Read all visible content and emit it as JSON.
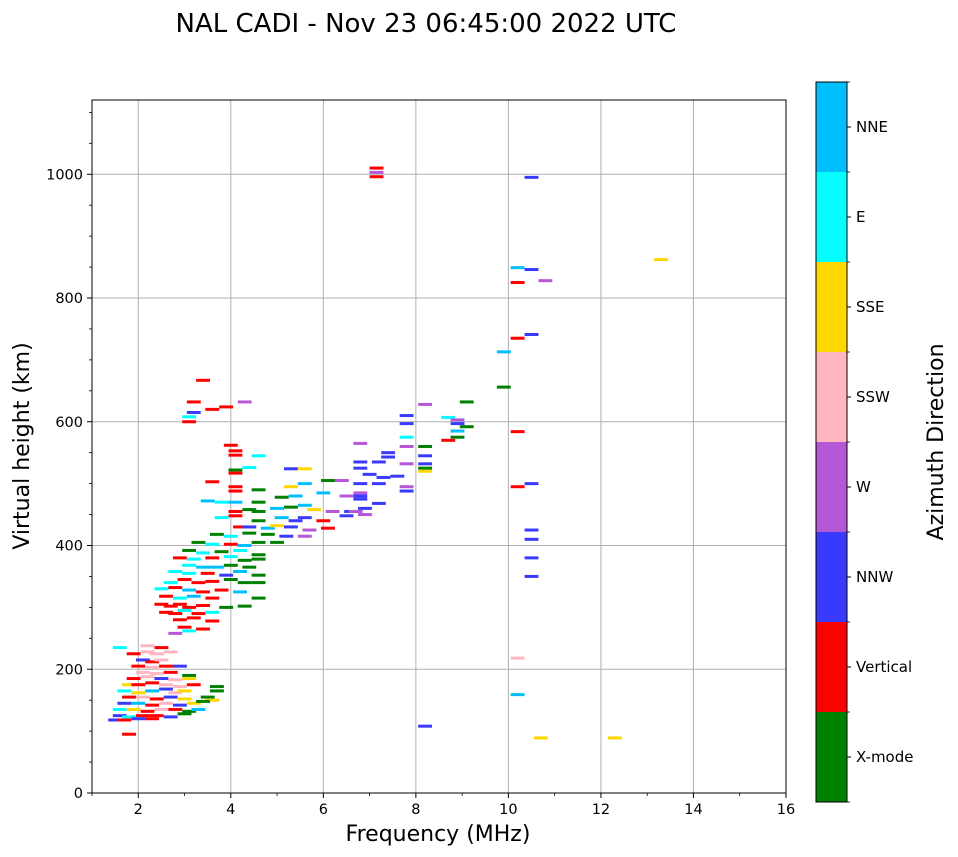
{
  "chart_data": {
    "type": "scatter",
    "title": "NAL CADI - Nov 23 06:45:00 2022 UTC",
    "xlabel": "Frequency (MHz)",
    "ylabel": "Virtual height (km)",
    "xlim": [
      1,
      16
    ],
    "ylim": [
      0,
      1120
    ],
    "xticks": [
      "2",
      "4",
      "6",
      "8",
      "10",
      "12",
      "14",
      "16"
    ],
    "yticks": [
      "0",
      "200",
      "400",
      "600",
      "800",
      "1000"
    ],
    "grid": true,
    "colorbar": {
      "label": "Azimuth Direction",
      "categories": [
        {
          "name": "X-mode",
          "color": "#008000"
        },
        {
          "name": "Vertical",
          "color": "#ff0000"
        },
        {
          "name": "NNW",
          "color": "#3a3aff"
        },
        {
          "name": "W",
          "color": "#b557d6"
        },
        {
          "name": "SSW",
          "color": "#ffb6c1"
        },
        {
          "name": "SSE",
          "color": "#ffd700"
        },
        {
          "name": "E",
          "color": "#00ffff"
        },
        {
          "name": "NNE",
          "color": "#00bfff"
        }
      ]
    },
    "points": [
      [
        7.15,
        1010,
        "Vertical"
      ],
      [
        7.15,
        1003,
        "W"
      ],
      [
        7.15,
        996,
        "Vertical"
      ],
      [
        10.5,
        995,
        "NNW"
      ],
      [
        13.3,
        862,
        "SSE"
      ],
      [
        10.2,
        849,
        "NNE"
      ],
      [
        10.5,
        846,
        "NNW"
      ],
      [
        10.2,
        825,
        "Vertical"
      ],
      [
        10.8,
        828,
        "W"
      ],
      [
        10.5,
        741,
        "NNW"
      ],
      [
        10.2,
        735,
        "Vertical"
      ],
      [
        9.9,
        713,
        "NNE"
      ],
      [
        9.9,
        656,
        "X-mode"
      ],
      [
        3.4,
        667,
        "Vertical"
      ],
      [
        3.2,
        632,
        "Vertical"
      ],
      [
        4.3,
        632,
        "W"
      ],
      [
        3.9,
        624,
        "Vertical"
      ],
      [
        8.2,
        628,
        "W"
      ],
      [
        9.1,
        632,
        "X-mode"
      ],
      [
        3.6,
        620,
        "Vertical"
      ],
      [
        3.2,
        615,
        "NNW"
      ],
      [
        3.1,
        608,
        "E"
      ],
      [
        3.1,
        600,
        "Vertical"
      ],
      [
        7.8,
        610,
        "NNW"
      ],
      [
        8.7,
        607,
        "E"
      ],
      [
        8.9,
        603,
        "W"
      ],
      [
        9.1,
        592,
        "X-mode"
      ],
      [
        8.9,
        597,
        "NNW"
      ],
      [
        7.8,
        597,
        "NNW"
      ],
      [
        10.2,
        584,
        "Vertical"
      ],
      [
        8.9,
        585,
        "NNE"
      ],
      [
        8.9,
        575,
        "X-mode"
      ],
      [
        8.7,
        570,
        "Vertical"
      ],
      [
        7.8,
        575,
        "E"
      ],
      [
        8.2,
        560,
        "X-mode"
      ],
      [
        6.8,
        565,
        "W"
      ],
      [
        7.8,
        560,
        "W"
      ],
      [
        4.0,
        562,
        "Vertical"
      ],
      [
        4.1,
        553,
        "Vertical"
      ],
      [
        4.1,
        546,
        "Vertical"
      ],
      [
        4.6,
        545,
        "E"
      ],
      [
        7.4,
        550,
        "NNW"
      ],
      [
        7.4,
        543,
        "NNW"
      ],
      [
        8.2,
        545,
        "NNW"
      ],
      [
        6.8,
        535,
        "NNW"
      ],
      [
        7.2,
        535,
        "NNW"
      ],
      [
        8.2,
        532,
        "NNW"
      ],
      [
        7.8,
        532,
        "W"
      ],
      [
        6.8,
        525,
        "NNW"
      ],
      [
        5.3,
        524,
        "NNW"
      ],
      [
        5.6,
        524,
        "SSE"
      ],
      [
        4.1,
        522,
        "X-mode"
      ],
      [
        4.1,
        517,
        "Vertical"
      ],
      [
        4.4,
        526,
        "E"
      ],
      [
        7.0,
        515,
        "NNW"
      ],
      [
        7.3,
        510,
        "NNW"
      ],
      [
        7.6,
        512,
        "NNW"
      ],
      [
        8.2,
        520,
        "SSE"
      ],
      [
        8.2,
        525,
        "X-mode"
      ],
      [
        6.1,
        505,
        "X-mode"
      ],
      [
        6.4,
        505,
        "W"
      ],
      [
        6.8,
        500,
        "NNW"
      ],
      [
        7.2,
        500,
        "NNW"
      ],
      [
        7.8,
        495,
        "W"
      ],
      [
        10.2,
        495,
        "Vertical"
      ],
      [
        10.5,
        500,
        "NNW"
      ],
      [
        3.6,
        503,
        "Vertical"
      ],
      [
        4.1,
        495,
        "Vertical"
      ],
      [
        4.1,
        488,
        "Vertical"
      ],
      [
        4.6,
        490,
        "X-mode"
      ],
      [
        5.6,
        500,
        "NNE"
      ],
      [
        5.3,
        495,
        "SSE"
      ],
      [
        6.0,
        485,
        "NNE"
      ],
      [
        6.8,
        485,
        "W"
      ],
      [
        6.8,
        480,
        "NNW"
      ],
      [
        7.8,
        488,
        "NNW"
      ],
      [
        3.5,
        472,
        "NNE"
      ],
      [
        3.8,
        470,
        "E"
      ],
      [
        4.1,
        470,
        "NNE"
      ],
      [
        4.6,
        470,
        "X-mode"
      ],
      [
        5.1,
        478,
        "X-mode"
      ],
      [
        5.4,
        480,
        "NNE"
      ],
      [
        6.5,
        480,
        "W"
      ],
      [
        6.8,
        475,
        "NNW"
      ],
      [
        7.2,
        468,
        "NNW"
      ],
      [
        4.1,
        455,
        "Vertical"
      ],
      [
        4.4,
        458,
        "X-mode"
      ],
      [
        4.6,
        455,
        "X-mode"
      ],
      [
        5.0,
        460,
        "NNE"
      ],
      [
        5.3,
        462,
        "X-mode"
      ],
      [
        5.6,
        465,
        "NNE"
      ],
      [
        5.8,
        458,
        "SSE"
      ],
      [
        6.2,
        455,
        "W"
      ],
      [
        6.6,
        455,
        "NNW"
      ],
      [
        6.9,
        460,
        "NNW"
      ],
      [
        3.8,
        445,
        "E"
      ],
      [
        4.1,
        448,
        "Vertical"
      ],
      [
        4.6,
        440,
        "X-mode"
      ],
      [
        5.1,
        445,
        "NNE"
      ],
      [
        5.4,
        440,
        "NNW"
      ],
      [
        5.6,
        445,
        "NNW"
      ],
      [
        6.0,
        440,
        "Vertical"
      ],
      [
        6.5,
        448,
        "NNW"
      ],
      [
        6.7,
        455,
        "W"
      ],
      [
        6.9,
        450,
        "W"
      ],
      [
        4.2,
        430,
        "Vertical"
      ],
      [
        4.4,
        430,
        "NNW"
      ],
      [
        4.8,
        428,
        "NNE"
      ],
      [
        5.0,
        432,
        "SSE"
      ],
      [
        5.3,
        430,
        "NNW"
      ],
      [
        5.7,
        425,
        "W"
      ],
      [
        6.1,
        428,
        "Vertical"
      ],
      [
        10.5,
        425,
        "NNW"
      ],
      [
        3.7,
        418,
        "X-mode"
      ],
      [
        4.0,
        415,
        "E"
      ],
      [
        4.4,
        420,
        "X-mode"
      ],
      [
        4.8,
        418,
        "X-mode"
      ],
      [
        5.2,
        415,
        "NNW"
      ],
      [
        5.6,
        415,
        "W"
      ],
      [
        10.5,
        410,
        "NNW"
      ],
      [
        3.3,
        405,
        "X-mode"
      ],
      [
        3.6,
        402,
        "E"
      ],
      [
        4.0,
        402,
        "Vertical"
      ],
      [
        4.3,
        400,
        "NNE"
      ],
      [
        4.6,
        405,
        "X-mode"
      ],
      [
        5.0,
        405,
        "X-mode"
      ],
      [
        3.1,
        392,
        "X-mode"
      ],
      [
        3.4,
        388,
        "E"
      ],
      [
        3.8,
        390,
        "X-mode"
      ],
      [
        4.2,
        392,
        "E"
      ],
      [
        4.6,
        385,
        "X-mode"
      ],
      [
        2.9,
        380,
        "Vertical"
      ],
      [
        3.2,
        378,
        "E"
      ],
      [
        3.6,
        380,
        "Vertical"
      ],
      [
        4.0,
        382,
        "E"
      ],
      [
        4.3,
        376,
        "X-mode"
      ],
      [
        4.6,
        378,
        "X-mode"
      ],
      [
        10.5,
        380,
        "NNW"
      ],
      [
        3.1,
        368,
        "E"
      ],
      [
        3.4,
        365,
        "NNE"
      ],
      [
        3.7,
        365,
        "NNE"
      ],
      [
        4.0,
        368,
        "X-mode"
      ],
      [
        4.4,
        365,
        "X-mode"
      ],
      [
        2.8,
        358,
        "E"
      ],
      [
        3.1,
        355,
        "E"
      ],
      [
        3.5,
        355,
        "Vertical"
      ],
      [
        3.9,
        352,
        "NNW"
      ],
      [
        4.2,
        358,
        "NNE"
      ],
      [
        4.6,
        352,
        "X-mode"
      ],
      [
        2.7,
        340,
        "E"
      ],
      [
        3.0,
        345,
        "Vertical"
      ],
      [
        3.3,
        340,
        "Vertical"
      ],
      [
        3.6,
        342,
        "Vertical"
      ],
      [
        4.0,
        345,
        "X-mode"
      ],
      [
        4.3,
        340,
        "X-mode"
      ],
      [
        4.6,
        340,
        "X-mode"
      ],
      [
        10.5,
        350,
        "NNW"
      ],
      [
        2.5,
        330,
        "E"
      ],
      [
        2.8,
        332,
        "Vertical"
      ],
      [
        3.1,
        328,
        "NNE"
      ],
      [
        3.4,
        325,
        "Vertical"
      ],
      [
        3.8,
        328,
        "Vertical"
      ],
      [
        4.2,
        325,
        "NNE"
      ],
      [
        2.6,
        318,
        "Vertical"
      ],
      [
        2.9,
        315,
        "E"
      ],
      [
        3.2,
        318,
        "NNE"
      ],
      [
        3.6,
        315,
        "Vertical"
      ],
      [
        4.6,
        315,
        "X-mode"
      ],
      [
        2.5,
        305,
        "Vertical"
      ],
      [
        2.7,
        302,
        "Vertical"
      ],
      [
        2.9,
        305,
        "Vertical"
      ],
      [
        3.1,
        300,
        "Vertical"
      ],
      [
        3.4,
        303,
        "Vertical"
      ],
      [
        3.9,
        300,
        "X-mode"
      ],
      [
        4.3,
        302,
        "X-mode"
      ],
      [
        2.6,
        292,
        "Vertical"
      ],
      [
        2.8,
        290,
        "Vertical"
      ],
      [
        3.0,
        295,
        "E"
      ],
      [
        3.3,
        290,
        "Vertical"
      ],
      [
        3.6,
        292,
        "E"
      ],
      [
        2.9,
        280,
        "Vertical"
      ],
      [
        3.2,
        283,
        "Vertical"
      ],
      [
        3.6,
        278,
        "Vertical"
      ],
      [
        3.0,
        268,
        "Vertical"
      ],
      [
        3.4,
        265,
        "Vertical"
      ],
      [
        2.8,
        258,
        "W"
      ],
      [
        3.1,
        262,
        "E"
      ],
      [
        1.6,
        235,
        "E"
      ],
      [
        2.2,
        238,
        "SSW"
      ],
      [
        2.5,
        235,
        "Vertical"
      ],
      [
        1.9,
        225,
        "Vertical"
      ],
      [
        2.2,
        228,
        "SSW"
      ],
      [
        2.4,
        225,
        "SSW"
      ],
      [
        2.7,
        228,
        "SSW"
      ],
      [
        10.2,
        218,
        "SSW"
      ],
      [
        2.1,
        215,
        "NNW"
      ],
      [
        2.3,
        212,
        "Vertical"
      ],
      [
        2.5,
        215,
        "SSW"
      ],
      [
        2.0,
        205,
        "Vertical"
      ],
      [
        2.3,
        203,
        "SSW"
      ],
      [
        2.6,
        205,
        "Vertical"
      ],
      [
        2.9,
        205,
        "NNW"
      ],
      [
        2.1,
        195,
        "SSW"
      ],
      [
        2.4,
        193,
        "SSW"
      ],
      [
        2.7,
        195,
        "Vertical"
      ],
      [
        3.1,
        190,
        "X-mode"
      ],
      [
        1.9,
        185,
        "Vertical"
      ],
      [
        2.2,
        188,
        "SSW"
      ],
      [
        2.5,
        185,
        "NNW"
      ],
      [
        2.8,
        183,
        "SSW"
      ],
      [
        3.1,
        185,
        "SSE"
      ],
      [
        1.8,
        175,
        "SSE"
      ],
      [
        2.0,
        175,
        "Vertical"
      ],
      [
        2.3,
        178,
        "Vertical"
      ],
      [
        2.6,
        175,
        "SSW"
      ],
      [
        2.9,
        172,
        "SSW"
      ],
      [
        3.2,
        175,
        "Vertical"
      ],
      [
        3.7,
        172,
        "X-mode"
      ],
      [
        1.7,
        165,
        "E"
      ],
      [
        2.0,
        162,
        "SSE"
      ],
      [
        2.3,
        165,
        "NNE"
      ],
      [
        2.6,
        168,
        "NNW"
      ],
      [
        2.8,
        162,
        "SSW"
      ],
      [
        3.0,
        165,
        "SSE"
      ],
      [
        3.7,
        165,
        "X-mode"
      ],
      [
        1.8,
        155,
        "Vertical"
      ],
      [
        2.1,
        155,
        "SSW"
      ],
      [
        2.4,
        152,
        "Vertical"
      ],
      [
        2.7,
        155,
        "NNW"
      ],
      [
        3.0,
        152,
        "SSE"
      ],
      [
        3.5,
        155,
        "X-mode"
      ],
      [
        3.6,
        150,
        "SSE"
      ],
      [
        1.7,
        145,
        "NNW"
      ],
      [
        2.0,
        145,
        "NNE"
      ],
      [
        2.3,
        142,
        "Vertical"
      ],
      [
        2.6,
        145,
        "SSW"
      ],
      [
        2.9,
        142,
        "NNW"
      ],
      [
        3.2,
        145,
        "SSE"
      ],
      [
        3.4,
        148,
        "X-mode"
      ],
      [
        1.6,
        135,
        "E"
      ],
      [
        1.9,
        135,
        "SSE"
      ],
      [
        2.2,
        132,
        "Vertical"
      ],
      [
        2.5,
        135,
        "SSW"
      ],
      [
        2.8,
        135,
        "Vertical"
      ],
      [
        3.1,
        132,
        "X-mode"
      ],
      [
        3.3,
        135,
        "NNE"
      ],
      [
        1.6,
        125,
        "NNW"
      ],
      [
        1.8,
        123,
        "E"
      ],
      [
        2.1,
        125,
        "Vertical"
      ],
      [
        2.4,
        125,
        "Vertical"
      ],
      [
        2.7,
        123,
        "NNW"
      ],
      [
        3.0,
        128,
        "X-mode"
      ],
      [
        1.5,
        118,
        "NNW"
      ],
      [
        1.7,
        118,
        "Vertical"
      ],
      [
        2.0,
        120,
        "NNW"
      ],
      [
        2.3,
        120,
        "Vertical"
      ],
      [
        8.2,
        108,
        "NNW"
      ],
      [
        1.8,
        95,
        "Vertical"
      ],
      [
        10.7,
        89,
        "SSE"
      ],
      [
        12.3,
        89,
        "SSE"
      ],
      [
        10.2,
        159,
        "NNE"
      ]
    ]
  }
}
